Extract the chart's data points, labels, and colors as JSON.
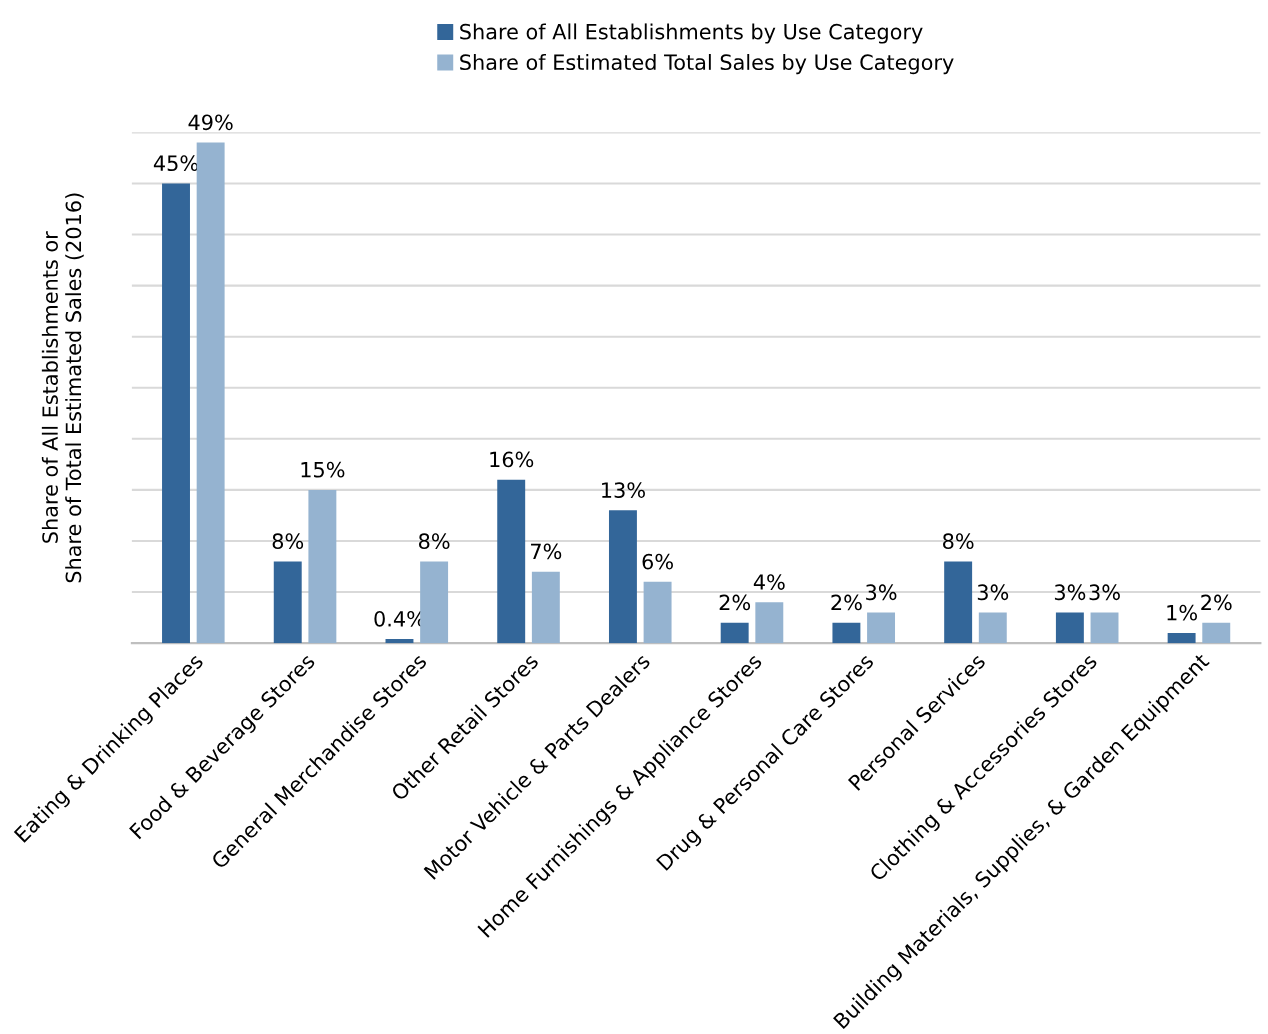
{
  "chart_data": {
    "type": "bar",
    "ylabel": "Share of All Establishments or\nShare of Total Estimated Sales (2016)",
    "categories": [
      "Eating & Drinking Places",
      "Food & Beverage Stores",
      "General Merchandise Stores",
      "Other Retail Stores",
      "Motor Vehicle & Parts Dealers",
      "Home Furnishings & Appliance Stores",
      "Drug & Personal Care Stores",
      "Personal Services",
      "Clothing & Accessories Stores",
      "Building Materials, Supplies, & Garden Equipment"
    ],
    "series": [
      {
        "name": "Share of All Establishments by Use Category",
        "color": "#336699",
        "values": [
          45,
          8,
          0.4,
          16,
          13,
          2,
          2,
          8,
          3,
          1
        ],
        "value_labels": [
          "45%",
          "8%",
          "0.4%",
          "16%",
          "13%",
          "2%",
          "2%",
          "8%",
          "3%",
          "1%"
        ]
      },
      {
        "name": "Share of Estimated Total Sales by Use Category",
        "color": "#95b3d0",
        "values": [
          49,
          15,
          8,
          7,
          6,
          4,
          3,
          3,
          3,
          2
        ],
        "value_labels": [
          "49%",
          "15%",
          "8%",
          "7%",
          "6%",
          "4%",
          "3%",
          "3%",
          "3%",
          "2%"
        ]
      }
    ],
    "ylim": [
      0,
      50
    ],
    "yticks": [
      {
        "value": 0,
        "label": null
      },
      {
        "value": 5,
        "label": null
      },
      {
        "value": 10,
        "label": null
      },
      {
        "value": 15,
        "label": null
      },
      {
        "value": 20,
        "label": null
      },
      {
        "value": 25,
        "label": null
      },
      {
        "value": 30,
        "label": null
      },
      {
        "value": 35,
        "label": null
      },
      {
        "value": 40,
        "label": null
      },
      {
        "value": 45,
        "label": null
      },
      {
        "value": 50,
        "label": null
      }
    ],
    "grid": "y",
    "legend": "top"
  }
}
